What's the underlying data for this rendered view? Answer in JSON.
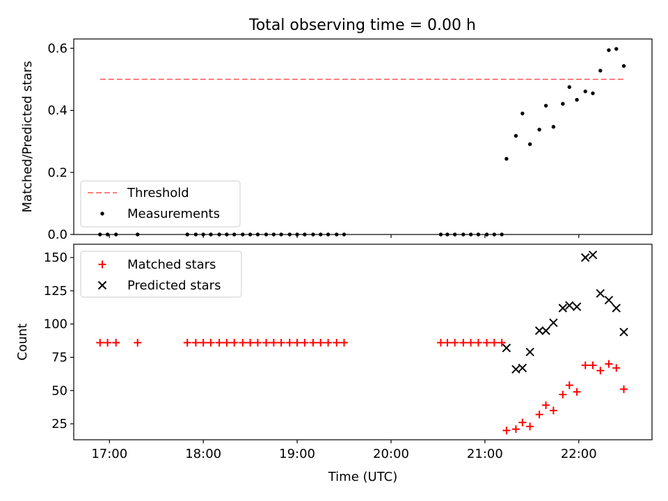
{
  "chart_data": {
    "type": "scatter",
    "title": "Total observing time = 0.00 h",
    "xlabel": "Time (UTC)",
    "x_unit": "hours UTC",
    "xlim": [
      16.62,
      22.78
    ],
    "x_ticks": [
      17,
      18,
      19,
      20,
      21,
      22
    ],
    "x_tick_labels": [
      "17:00",
      "18:00",
      "19:00",
      "20:00",
      "21:00",
      "22:00"
    ],
    "colors": {
      "threshold": "#ff7f7f",
      "measurements": "#000000",
      "matched": "#ff0000",
      "predicted": "#000000"
    },
    "times": [
      16.9,
      16.98,
      17.07,
      17.3,
      17.83,
      17.92,
      18.0,
      18.08,
      18.17,
      18.25,
      18.33,
      18.42,
      18.5,
      18.58,
      18.67,
      18.75,
      18.83,
      18.92,
      19.0,
      19.08,
      19.17,
      19.25,
      19.33,
      19.42,
      19.5,
      20.53,
      20.6,
      20.68,
      20.77,
      20.85,
      20.93,
      21.02,
      21.1,
      21.18,
      21.23,
      21.33,
      21.4,
      21.48,
      21.58,
      21.65,
      21.73,
      21.83,
      21.9,
      21.98,
      22.07,
      22.15,
      22.23,
      22.32,
      22.4,
      22.48
    ],
    "panels": [
      {
        "ylabel": "Matched/Predicted stars",
        "ylim": [
          0,
          0.63
        ],
        "y_ticks": [
          0,
          0.2,
          0.4,
          0.6
        ],
        "y_tick_labels": [
          "0.0",
          "0.2",
          "0.4",
          "0.6"
        ],
        "legend_position": "lower-left",
        "threshold": {
          "name": "Threshold",
          "x": [
            16.9,
            22.48
          ],
          "y": 0.5
        },
        "series": [
          {
            "name": "Measurements",
            "marker": "dot",
            "y": [
              0,
              0,
              0,
              0,
              0,
              0,
              0,
              0,
              0,
              0,
              0,
              0,
              0,
              0,
              0,
              0,
              0,
              0,
              0,
              0,
              0,
              0,
              0,
              0,
              0,
              0,
              0,
              0,
              0,
              0,
              0,
              0,
              0,
              0,
              0.244,
              0.318,
              0.39,
              0.291,
              0.338,
              0.415,
              0.347,
              0.421,
              0.475,
              0.434,
              0.461,
              0.455,
              0.528,
              0.594,
              0.598,
              0.543
            ]
          }
        ]
      },
      {
        "ylabel": "Count",
        "ylim": [
          13,
          160
        ],
        "y_ticks": [
          25,
          50,
          75,
          100,
          125,
          150
        ],
        "y_tick_labels": [
          "25",
          "50",
          "75",
          "100",
          "125",
          "150"
        ],
        "legend_position": "upper-left",
        "series": [
          {
            "name": "Matched stars",
            "marker": "plus",
            "y": [
              86,
              86,
              86,
              86,
              86,
              86,
              86,
              86,
              86,
              86,
              86,
              86,
              86,
              86,
              86,
              86,
              86,
              86,
              86,
              86,
              86,
              86,
              86,
              86,
              86,
              86,
              86,
              86,
              86,
              86,
              86,
              86,
              86,
              86,
              20,
              21,
              26,
              23,
              32,
              39,
              35,
              47,
              54,
              49,
              69,
              69,
              65,
              70,
              67,
              51
            ]
          },
          {
            "name": "Predicted stars",
            "marker": "x",
            "times": [
              21.23,
              21.33,
              21.4,
              21.48,
              21.58,
              21.65,
              21.73,
              21.83,
              21.9,
              21.98,
              22.07,
              22.15,
              22.23,
              22.32,
              22.4,
              22.48
            ],
            "y": [
              82,
              66,
              67,
              79,
              95,
              95,
              101,
              112,
              114,
              113,
              150,
              152,
              123,
              118,
              112,
              94
            ]
          }
        ]
      }
    ]
  }
}
